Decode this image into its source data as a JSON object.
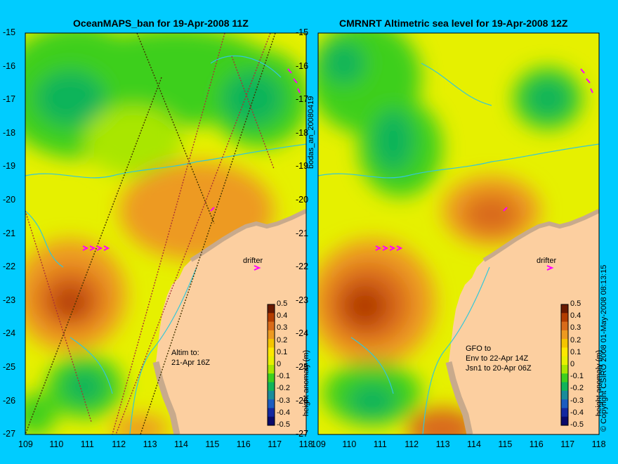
{
  "left_panel": {
    "title": "OceanMAPS_ban for 19-Apr-2008 11Z",
    "annotation_line1": "Altim to:",
    "annotation_line2": "21-Apr 16Z",
    "drifter_label": "drifter",
    "colorbar_label": "height anomaly (m)"
  },
  "right_panel": {
    "title": "CMRNRT Altimetric sea level  for 19-Apr-2008 12Z",
    "annotation_line1": "GFO to",
    "annotation_line2": "Env to 22-Apr 14Z",
    "annotation_line3": "Jsn1 to 20-Apr 06Z",
    "drifter_label": "drifter",
    "colorbar_label": "height anomaly (m)"
  },
  "side_label_middle": "bodas_an_20080419",
  "side_label_right": "© Copyright CSIRO 2008   01-May-2008 08:13:15",
  "axes": {
    "lon_ticks": [
      "109",
      "110",
      "111",
      "112",
      "113",
      "114",
      "115",
      "116",
      "117",
      "118"
    ],
    "lat_ticks": [
      "-15",
      "-16",
      "-17",
      "-18",
      "-19",
      "-20",
      "-21",
      "-22",
      "-23",
      "-24",
      "-25",
      "-26",
      "-27"
    ]
  },
  "colorbar": {
    "ticks": [
      "0.5",
      "0.4",
      "0.3",
      "0.2",
      "0.1",
      "0",
      "-0.1",
      "-0.2",
      "-0.3",
      "-0.4",
      "-0.5"
    ],
    "colors": [
      "#6a1a00",
      "#b33d00",
      "#d96b1a",
      "#ed9a20",
      "#f5c500",
      "#fde800",
      "#e8f000",
      "#a9e600",
      "#3dcf1f",
      "#11b45a",
      "#1a8c9a",
      "#1c5cc0",
      "#1428a0",
      "#0a0a6a"
    ]
  },
  "colors": {
    "background": "#00ccff",
    "land": "#fccfa0",
    "coast_shelf": "#c8aa8c",
    "contour": "#33c7d9",
    "drifter": "#ff00ff"
  }
}
